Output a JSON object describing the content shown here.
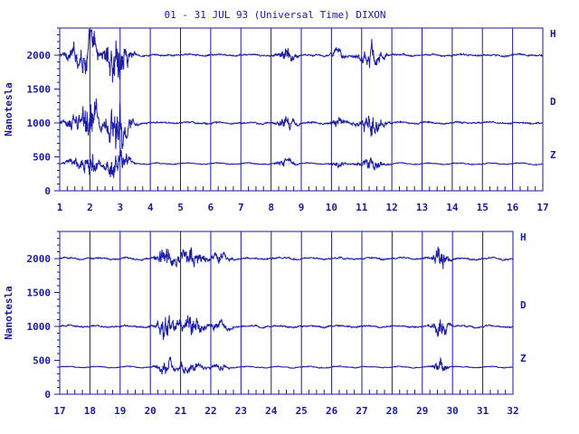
{
  "title": "01 - 31 JUL 93 (Universal Time) DIXON",
  "colors": {
    "axis": "#1a1a9a",
    "trace": "#1c1ca8",
    "background": "#ffffff"
  },
  "chart_data": [
    {
      "type": "line",
      "ylabel": "Nanotesla",
      "ylim": [
        0,
        2400
      ],
      "yticks": [
        "0",
        "500",
        "1000",
        "1500",
        "2000"
      ],
      "xlim": [
        1,
        17
      ],
      "xticks": [
        "1",
        "2",
        "3",
        "4",
        "5",
        "6",
        "7",
        "8",
        "9",
        "10",
        "11",
        "12",
        "13",
        "14",
        "15",
        "16",
        "17"
      ],
      "grid": "vertical at each day",
      "series": [
        {
          "name": "H",
          "baseline": 2000
        },
        {
          "name": "D",
          "baseline": 1000
        },
        {
          "name": "Z",
          "baseline": 400
        }
      ]
    },
    {
      "type": "line",
      "ylabel": "Nanotesla",
      "ylim": [
        0,
        2400
      ],
      "yticks": [
        "0",
        "500",
        "1000",
        "1500",
        "2000"
      ],
      "xlim": [
        17,
        32
      ],
      "xticks": [
        "17",
        "18",
        "19",
        "20",
        "21",
        "22",
        "23",
        "24",
        "25",
        "26",
        "27",
        "28",
        "29",
        "30",
        "31",
        "32"
      ],
      "grid": "vertical at each day",
      "series": [
        {
          "name": "H",
          "baseline": 2000
        },
        {
          "name": "D",
          "baseline": 1000
        },
        {
          "name": "Z",
          "baseline": 400
        }
      ]
    }
  ]
}
